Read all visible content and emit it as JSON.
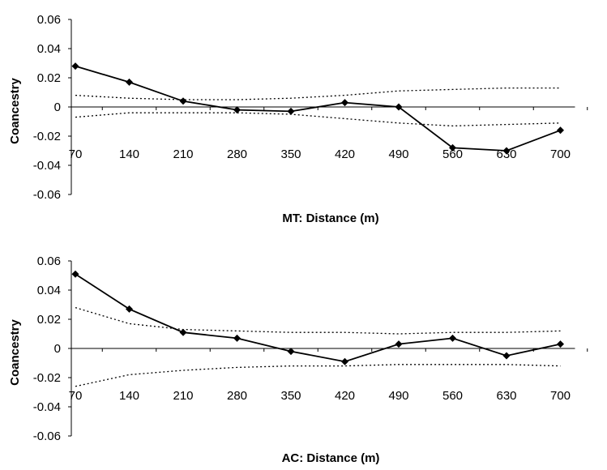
{
  "chart_data": [
    {
      "type": "line",
      "xlabel": "MT: Distance (m)",
      "ylabel": "Coancestry",
      "ylim": [
        -0.06,
        0.06
      ],
      "yticks": [
        "-0.06",
        "-0.04",
        "-0.02",
        "0",
        "0.02",
        "0.04",
        "0.06"
      ],
      "categories": [
        "70",
        "140",
        "210",
        "280",
        "350",
        "420",
        "490",
        "560",
        "630",
        "700"
      ],
      "grid": false,
      "legend": "none",
      "series": [
        {
          "style": "solid-diamond",
          "values": [
            0.028,
            0.017,
            0.004,
            -0.002,
            -0.003,
            0.003,
            0.0,
            -0.028,
            -0.03,
            -0.016
          ]
        },
        {
          "style": "dotted",
          "values": [
            0.008,
            0.006,
            0.005,
            0.005,
            0.006,
            0.008,
            0.011,
            0.012,
            0.013,
            0.013
          ]
        },
        {
          "style": "dotted",
          "values": [
            -0.007,
            -0.004,
            -0.004,
            -0.004,
            -0.005,
            -0.008,
            -0.011,
            -0.013,
            -0.012,
            -0.011
          ]
        }
      ]
    },
    {
      "type": "line",
      "xlabel": "AC: Distance (m)",
      "ylabel": "Coancestry",
      "ylim": [
        -0.06,
        0.06
      ],
      "yticks": [
        "-0.06",
        "-0.04",
        "-0.02",
        "0",
        "0.02",
        "0.04",
        "0.06"
      ],
      "categories": [
        "70",
        "140",
        "210",
        "280",
        "350",
        "420",
        "490",
        "560",
        "630",
        "700"
      ],
      "grid": false,
      "legend": "none",
      "series": [
        {
          "style": "solid-diamond",
          "values": [
            0.051,
            0.027,
            0.011,
            0.007,
            -0.002,
            -0.009,
            0.003,
            0.007,
            -0.005,
            0.003
          ]
        },
        {
          "style": "dotted",
          "values": [
            0.028,
            0.017,
            0.013,
            0.012,
            0.011,
            0.011,
            0.01,
            0.011,
            0.011,
            0.012
          ]
        },
        {
          "style": "dotted",
          "values": [
            -0.026,
            -0.018,
            -0.015,
            -0.013,
            -0.012,
            -0.012,
            -0.011,
            -0.011,
            -0.011,
            -0.012
          ]
        }
      ]
    }
  ]
}
